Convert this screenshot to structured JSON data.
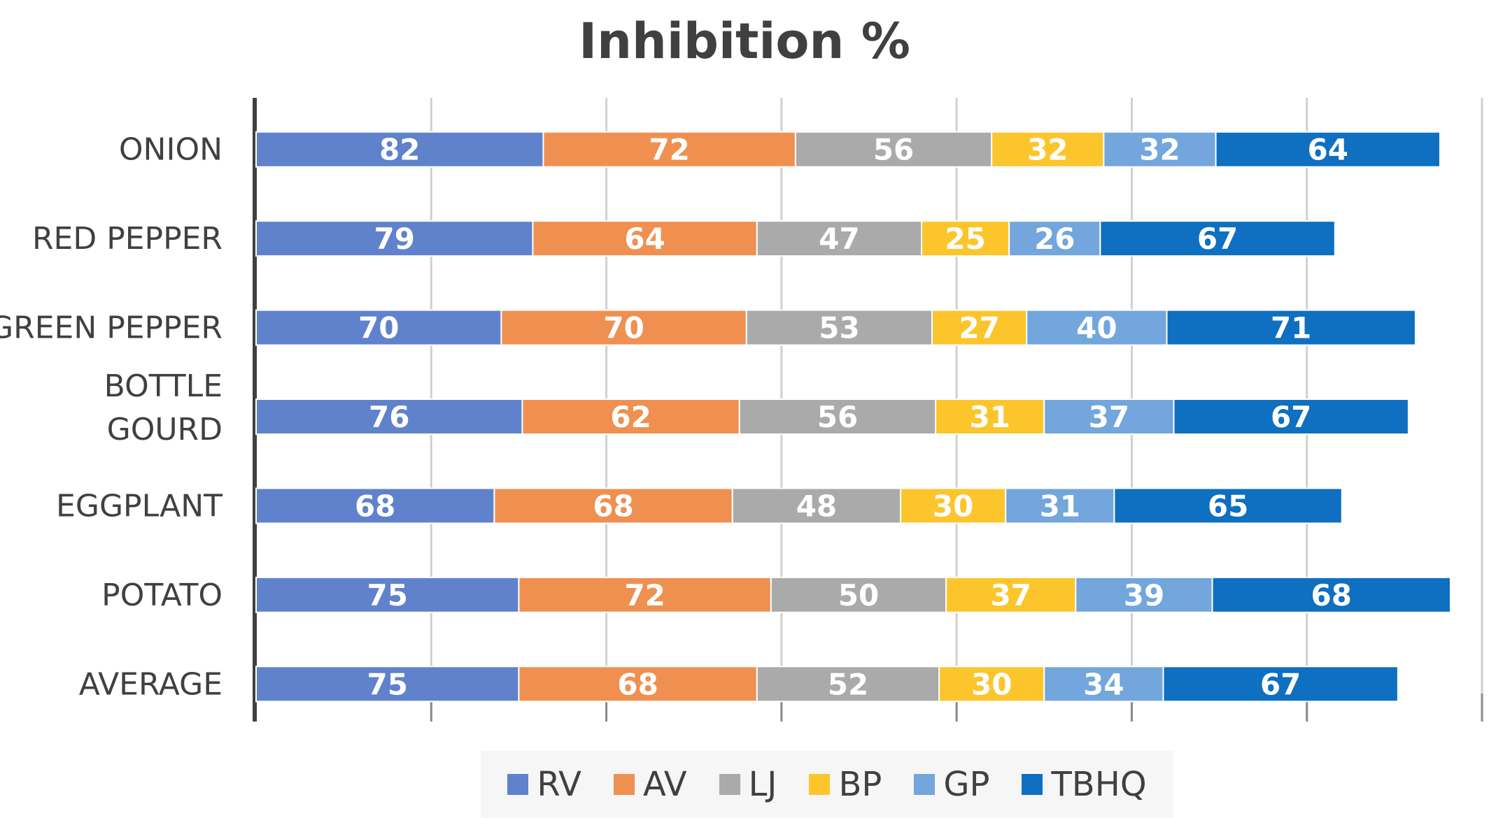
{
  "chart_data": {
    "type": "bar",
    "orientation": "horizontal",
    "stacked": true,
    "title": "Inhibition %",
    "xlabel": "",
    "ylabel": "",
    "xlim": [
      0,
      350
    ],
    "grid": true,
    "legend_position": "bottom",
    "categories": [
      "ONION",
      "RED PEPPER",
      "GREEN PEPPER",
      "BOTTLE GOURD",
      "EGGPLANT",
      "POTATO",
      "AVERAGE"
    ],
    "series": [
      {
        "name": "RV",
        "color": "#6082cc",
        "values": [
          82,
          79,
          70,
          76,
          68,
          75,
          75
        ]
      },
      {
        "name": "AV",
        "color": "#ef9050",
        "values": [
          72,
          64,
          70,
          62,
          68,
          72,
          68
        ]
      },
      {
        "name": "LJ",
        "color": "#aaaaaa",
        "values": [
          56,
          47,
          53,
          56,
          48,
          50,
          52
        ]
      },
      {
        "name": "BP",
        "color": "#fcc52c",
        "values": [
          32,
          25,
          27,
          31,
          30,
          37,
          30
        ]
      },
      {
        "name": "GP",
        "color": "#72a6dc",
        "values": [
          32,
          26,
          40,
          37,
          31,
          39,
          34
        ]
      },
      {
        "name": "TBHQ",
        "color": "#0f6fc0",
        "values": [
          64,
          67,
          71,
          67,
          65,
          68,
          67
        ]
      }
    ]
  }
}
